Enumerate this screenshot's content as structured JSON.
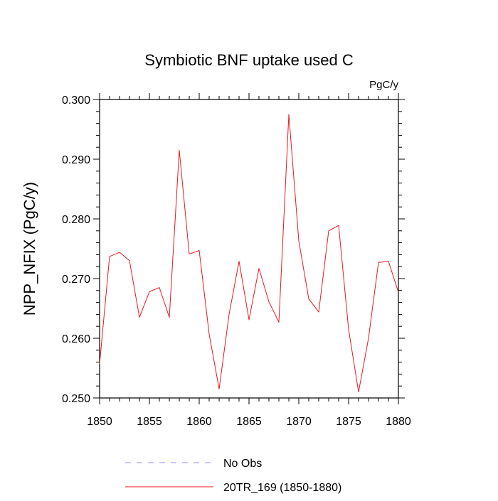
{
  "chart_data": {
    "type": "line",
    "title": "Symbiotic BNF uptake used C",
    "units": "PgC/y",
    "xlabel": "",
    "ylabel": "NPP_NFIX  (PgC/y)",
    "xlim": [
      1850,
      1880
    ],
    "ylim": [
      0.25,
      0.3
    ],
    "x_ticks": [
      1850,
      1855,
      1860,
      1865,
      1870,
      1875,
      1880
    ],
    "x_tick_labels": [
      "1850",
      "1855",
      "1860",
      "1865",
      "1870",
      "1875",
      "1880"
    ],
    "y_ticks": [
      0.25,
      0.26,
      0.27,
      0.28,
      0.29,
      0.3
    ],
    "y_tick_labels": [
      "0.250",
      "0.260",
      "0.270",
      "0.280",
      "0.290",
      "0.300"
    ],
    "grid": false,
    "legend_position": "bottom",
    "legend": [
      {
        "label": "No Obs",
        "color": "#8f8ff0",
        "style": "dashed"
      },
      {
        "label": "20TR_169 (1850-1880)",
        "color": "#e8171e",
        "style": "solid"
      }
    ],
    "series": [
      {
        "name": "20TR_169 (1850-1880)",
        "color": "#e8171e",
        "x": [
          1850,
          1851,
          1852,
          1853,
          1854,
          1855,
          1856,
          1857,
          1858,
          1859,
          1860,
          1861,
          1862,
          1863,
          1864,
          1865,
          1866,
          1867,
          1868,
          1869,
          1870,
          1871,
          1872,
          1873,
          1874,
          1875,
          1876,
          1877,
          1878,
          1879,
          1880
        ],
        "values": [
          0.2557,
          0.2737,
          0.2744,
          0.273,
          0.2635,
          0.2678,
          0.2685,
          0.2635,
          0.2915,
          0.2741,
          0.2747,
          0.2607,
          0.2515,
          0.264,
          0.2729,
          0.2631,
          0.2717,
          0.2661,
          0.2627,
          0.2975,
          0.2763,
          0.2666,
          0.2644,
          0.278,
          0.2789,
          0.2615,
          0.251,
          0.26,
          0.2727,
          0.2729,
          0.2677
        ]
      }
    ]
  }
}
